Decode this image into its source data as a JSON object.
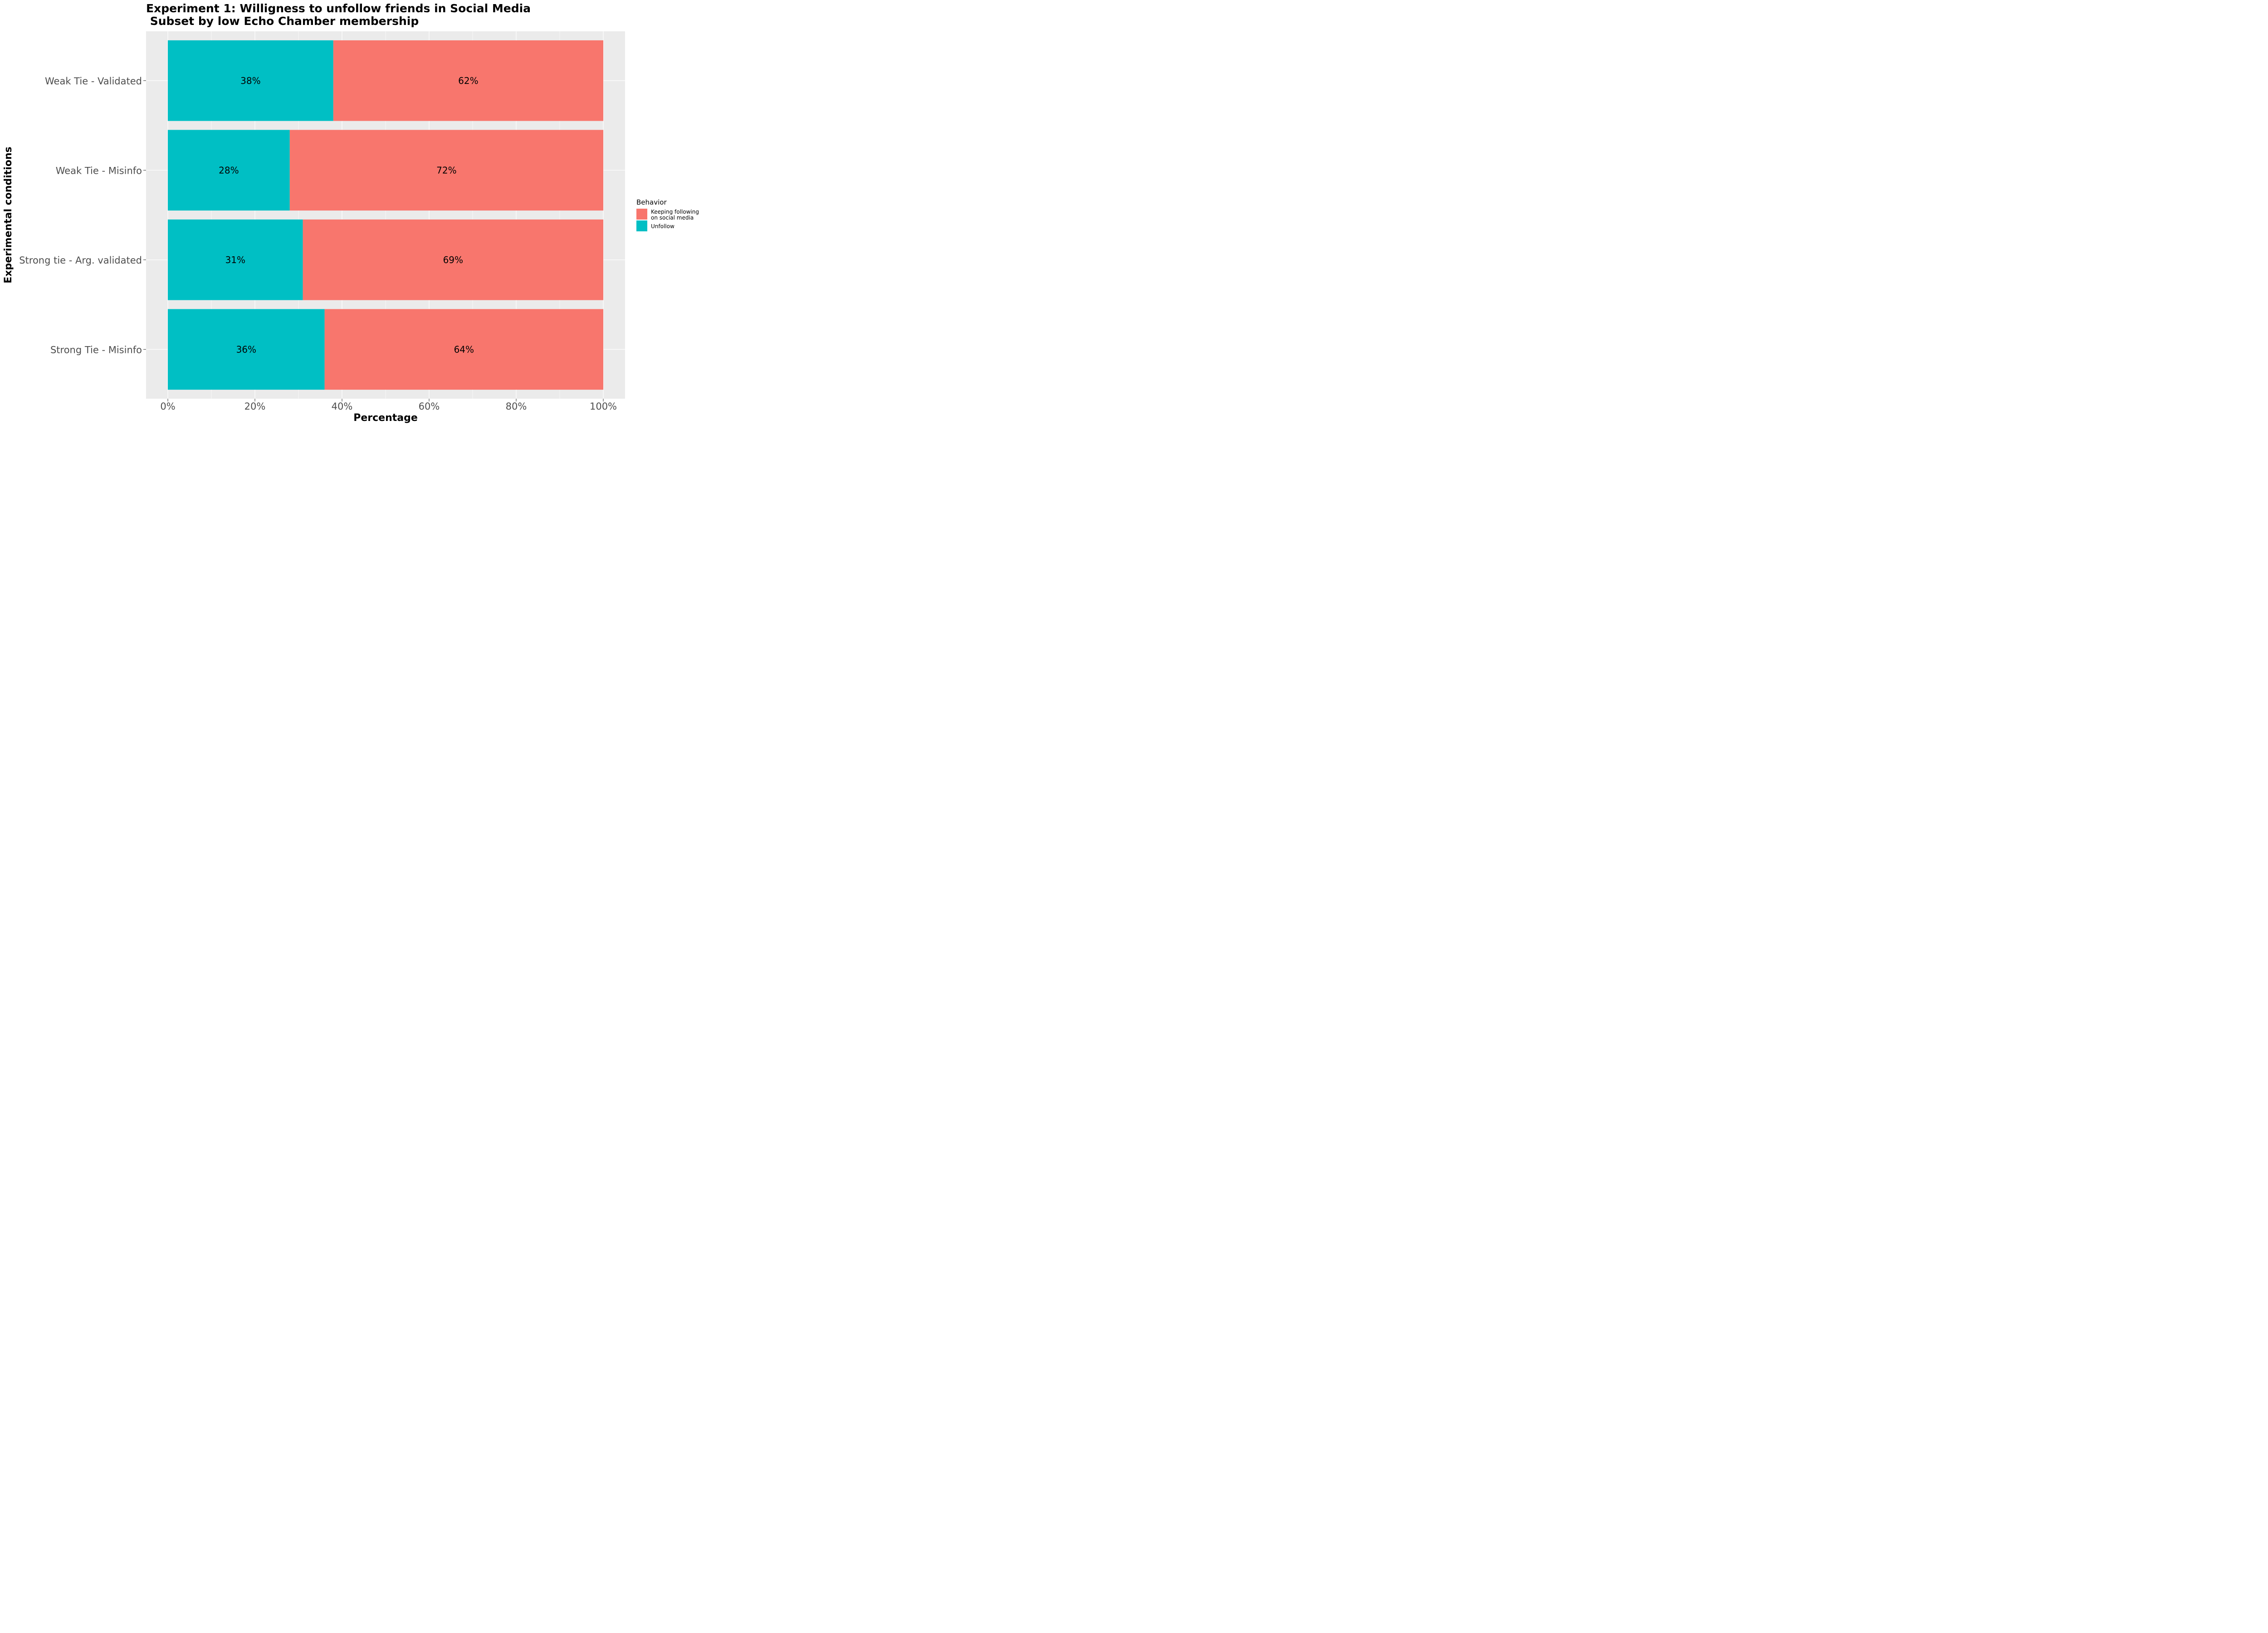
{
  "chart_data": {
    "type": "bar",
    "orientation": "horizontal",
    "stacked": true,
    "title": "Experiment 1: Willigness to unfollow friends in Social Media",
    "subtitle": " Subset by low Echo Chamber membership",
    "xlabel": "Percentage",
    "ylabel": "Experimental conditions",
    "xlim": [
      0,
      100
    ],
    "x_ticks": [
      "0%",
      "20%",
      "40%",
      "60%",
      "80%",
      "100%"
    ],
    "categories": [
      "Weak Tie - Validated",
      "Weak Tie - Misinfo",
      "Strong tie - Arg. validated",
      "Strong Tie - Misinfo"
    ],
    "series": [
      {
        "name": "Unfollow",
        "color": "#00BFC4",
        "values": [
          38,
          28,
          31,
          36
        ],
        "labels": [
          "38%",
          "28%",
          "31%",
          "36%"
        ]
      },
      {
        "name": "Keeping following\n on social media",
        "color": "#F8766D",
        "values": [
          62,
          72,
          69,
          64
        ],
        "labels": [
          "62%",
          "72%",
          "69%",
          "64%"
        ]
      }
    ],
    "grid": true,
    "panel_background": "#EBEBEB",
    "legend": {
      "title": "Behavior",
      "position": "right",
      "entries": [
        {
          "label_lines": [
            "Keeping following",
            " on social media"
          ],
          "color": "#F8766D"
        },
        {
          "label_lines": [
            "Unfollow"
          ],
          "color": "#00BFC4"
        }
      ]
    }
  }
}
